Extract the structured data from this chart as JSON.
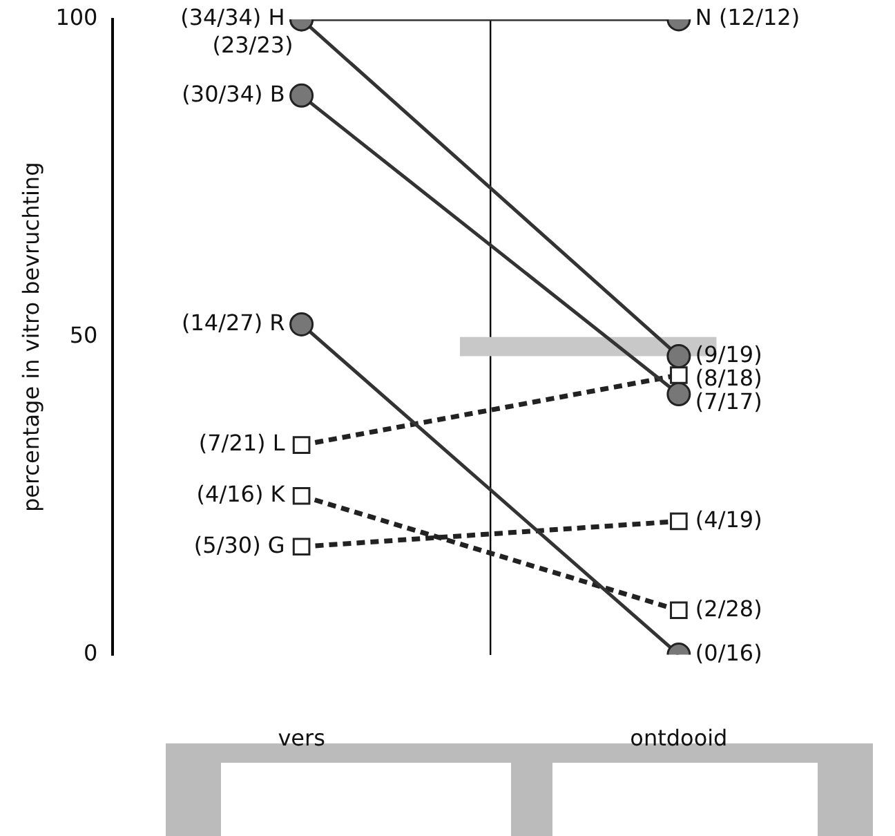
{
  "chart_data": {
    "type": "line",
    "ylabel": "percentage in vitro bevruchting",
    "categories": [
      "vers",
      "ontdooid"
    ],
    "ylim": [
      0,
      100
    ],
    "yticks": [
      0,
      50,
      100
    ],
    "legend": false,
    "bands": [
      {
        "axis": "y",
        "from": 47,
        "to": 50,
        "color": "#c8c8c8"
      }
    ],
    "series": [
      {
        "name": "H",
        "color": "#777777",
        "values": [
          100,
          47
        ],
        "value_labels": [
          "(34/34)",
          "(9/19)"
        ],
        "marker": "circle",
        "line_style": "solid"
      },
      {
        "name": "N",
        "color": "#777777",
        "values": [
          100,
          100
        ],
        "value_labels": [
          "(23/23)",
          "(12/12)"
        ],
        "marker": "circle",
        "line_style": "solid"
      },
      {
        "name": "B",
        "color": "#777777",
        "values": [
          88,
          41
        ],
        "value_labels": [
          "(30/34)",
          "(7/17)"
        ],
        "marker": "circle",
        "line_style": "solid"
      },
      {
        "name": "R",
        "color": "#777777",
        "values": [
          52,
          0
        ],
        "value_labels": [
          "(14/27)",
          "(0/16)"
        ],
        "marker": "circle",
        "line_style": "solid"
      },
      {
        "name": "L",
        "color": "#222222",
        "values": [
          33,
          44
        ],
        "value_labels": [
          "(7/21)",
          "(8/18)"
        ],
        "marker": "square",
        "line_style": "dashed"
      },
      {
        "name": "K",
        "color": "#222222",
        "values": [
          25,
          7
        ],
        "value_labels": [
          "(4/16)",
          "(2/28)"
        ],
        "marker": "square",
        "line_style": "dashed"
      },
      {
        "name": "G",
        "color": "#222222",
        "values": [
          17,
          21
        ],
        "value_labels": [
          "(5/30)",
          "(4/19)"
        ],
        "marker": "square",
        "line_style": "dashed"
      }
    ]
  }
}
